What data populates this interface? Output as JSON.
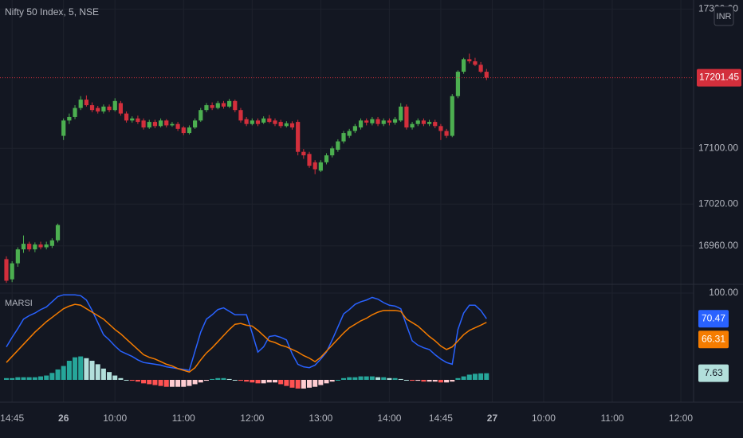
{
  "chart_data": {
    "type": "candlestick",
    "title": "Nifty 50 Index, 5, NSE",
    "currency": "INR",
    "categories": [
      null,
      "14:45",
      null,
      null,
      null,
      null,
      null,
      null,
      null,
      null,
      "26",
      null,
      null,
      null,
      null,
      null,
      null,
      null,
      null,
      "10:00",
      null,
      null,
      null,
      null,
      null,
      null,
      null,
      null,
      null,
      null,
      null,
      "11:00",
      null,
      null,
      null,
      null,
      null,
      null,
      null,
      null,
      null,
      null,
      null,
      "12:00",
      null,
      null,
      null,
      null,
      null,
      null,
      null,
      null,
      null,
      null,
      null,
      "13:00",
      null,
      null,
      null,
      null,
      null,
      null,
      null,
      null,
      null,
      null,
      null,
      "14:00",
      null,
      null,
      null,
      null,
      null,
      null,
      null,
      null,
      "14:45",
      null,
      null,
      null,
      null,
      null,
      null,
      null,
      null,
      "27",
      null,
      null,
      null,
      null,
      null,
      null,
      null,
      null,
      "10:00",
      null,
      null,
      null,
      null,
      null,
      null,
      null,
      null,
      null,
      null,
      null,
      "11:00",
      null,
      null,
      null,
      null,
      null,
      null,
      null,
      null,
      null,
      null,
      null,
      "12:00"
    ],
    "open": [
      16941,
      16912,
      16935,
      16955,
      16963,
      16955,
      16962,
      16958,
      16960,
      16968,
      17118,
      17140,
      17145,
      17158,
      17170,
      17162,
      17158,
      17153,
      17160,
      17155,
      17165,
      17150,
      17140,
      17143,
      17140,
      17130,
      17138,
      17132,
      17140,
      17133,
      17135,
      17130,
      17122,
      17130,
      17140,
      17155,
      17162,
      17158,
      17165,
      17160,
      17168,
      17155,
      17142,
      17135,
      17140,
      17137,
      17143,
      17140,
      17138,
      17132,
      17136,
      17138,
      17095,
      17092,
      17080,
      17068,
      17080,
      17090,
      17098,
      17110,
      17118,
      17125,
      17130,
      17140,
      17136,
      17142,
      17135,
      17140,
      17137,
      17140,
      17160,
      17130,
      17135,
      17140,
      17135,
      17138,
      17132,
      17125,
      17118,
      17175,
      17210,
      17228,
      17225,
      17220,
      17210,
      null,
      null,
      null,
      null,
      null,
      null,
      null,
      null,
      null,
      null,
      null,
      null,
      null,
      null,
      null,
      null,
      null,
      null,
      null,
      null,
      null,
      null,
      null,
      null,
      null,
      null,
      null,
      null,
      null,
      null,
      null,
      null,
      null,
      null
    ],
    "high": [
      16945,
      16938,
      16958,
      16975,
      16966,
      16965,
      16966,
      16966,
      16971,
      16992,
      17143,
      17150,
      17162,
      17175,
      17176,
      17166,
      17161,
      17163,
      17163,
      17172,
      17168,
      17153,
      17146,
      17147,
      17143,
      17141,
      17141,
      17143,
      17142,
      17138,
      17138,
      17132,
      17133,
      17143,
      17158,
      17165,
      17166,
      17168,
      17168,
      17171,
      17170,
      17158,
      17145,
      17143,
      17143,
      17146,
      17148,
      17143,
      17141,
      17139,
      17139,
      17141,
      17099,
      17095,
      17083,
      17083,
      17093,
      17103,
      17113,
      17125,
      17128,
      17135,
      17143,
      17143,
      17145,
      17145,
      17143,
      17143,
      17145,
      17165,
      17163,
      17138,
      17143,
      17143,
      17141,
      17141,
      17135,
      17128,
      17178,
      17212,
      17230,
      17236,
      17230,
      17224,
      17214,
      null,
      null,
      null,
      null,
      null,
      null,
      null,
      null,
      null,
      null,
      null,
      null,
      null,
      null,
      null,
      null,
      null,
      null,
      null,
      null,
      null,
      null,
      null,
      null,
      null,
      null,
      null,
      null,
      null,
      null,
      null,
      null,
      null,
      null
    ],
    "low": [
      16907,
      16908,
      16930,
      16950,
      16952,
      16951,
      16955,
      16955,
      16957,
      16965,
      17112,
      17135,
      17142,
      17155,
      17160,
      17152,
      17150,
      17150,
      17152,
      17153,
      17147,
      17137,
      17137,
      17135,
      17127,
      17128,
      17129,
      17130,
      17130,
      17131,
      17125,
      17119,
      17120,
      17128,
      17138,
      17152,
      17155,
      17156,
      17157,
      17158,
      17152,
      17137,
      17132,
      17133,
      17132,
      17135,
      17136,
      17132,
      17129,
      17130,
      17127,
      17090,
      17085,
      17072,
      17063,
      17066,
      17077,
      17087,
      17095,
      17107,
      17115,
      17122,
      17127,
      17133,
      17133,
      17132,
      17132,
      17133,
      17134,
      17138,
      17127,
      17127,
      17132,
      17132,
      17132,
      17129,
      17112,
      17115,
      17116,
      17172,
      17207,
      17222,
      17218,
      17208,
      17198,
      null,
      null,
      null,
      null,
      null,
      null,
      null,
      null,
      null,
      null,
      null,
      null,
      null,
      null,
      null,
      null,
      null,
      null,
      null,
      null,
      null,
      null,
      null,
      null,
      null,
      null,
      null,
      null,
      null,
      null,
      null,
      null,
      null,
      null
    ],
    "close": [
      16910,
      16935,
      16955,
      16963,
      16955,
      16962,
      16958,
      16962,
      16968,
      16990,
      17140,
      17145,
      17158,
      17170,
      17162,
      17155,
      17153,
      17160,
      17155,
      17168,
      17150,
      17140,
      17143,
      17138,
      17130,
      17138,
      17132,
      17140,
      17133,
      17135,
      17128,
      17122,
      17130,
      17140,
      17155,
      17162,
      17158,
      17165,
      17160,
      17168,
      17155,
      17140,
      17135,
      17140,
      17135,
      17143,
      17138,
      17135,
      17132,
      17136,
      17130,
      17095,
      17090,
      17075,
      17070,
      17080,
      17090,
      17100,
      17110,
      17122,
      17125,
      17132,
      17140,
      17137,
      17142,
      17135,
      17140,
      17137,
      17142,
      17160,
      17130,
      17135,
      17140,
      17135,
      17138,
      17132,
      17125,
      17118,
      17175,
      17210,
      17228,
      17225,
      17220,
      17210,
      17201.45,
      null,
      null,
      null,
      null,
      null,
      null,
      null,
      null,
      null,
      null,
      null,
      null,
      null,
      null,
      null,
      null,
      null,
      null,
      null,
      null,
      null,
      null,
      null,
      null,
      null,
      null,
      null,
      null,
      null,
      null,
      null,
      null,
      null,
      null
    ],
    "last_price": 17201.45,
    "colors": {
      "up": "#4caf50",
      "down": "#d32f3c",
      "last_price": "#d32f3c"
    },
    "ylim": [
      16906,
      17313
    ],
    "yticks": [
      {
        "value": 16960,
        "label": "16960.00"
      },
      {
        "value": 17020,
        "label": "17020.00"
      },
      {
        "value": 17100,
        "label": "17100.00"
      },
      {
        "value": 17300,
        "label": "17300.00"
      }
    ],
    "grid": true,
    "indicator": {
      "type": "line",
      "title": "MARSI",
      "ylim": [
        -25.7,
        109.2
      ],
      "yticks": [
        {
          "value": 100,
          "label": "100.00"
        }
      ],
      "series": [
        {
          "color": "#2962ff",
          "values": [
            38,
            49,
            59,
            70,
            74,
            77,
            81,
            84,
            90,
            96,
            98,
            98,
            98,
            97,
            92,
            80,
            66,
            52,
            46,
            39,
            33,
            30,
            27,
            23,
            20,
            19,
            18,
            17,
            15,
            14,
            13,
            12,
            11,
            33,
            55,
            70,
            75,
            81,
            83,
            79,
            75,
            75,
            75,
            54,
            32,
            38,
            50,
            51,
            49,
            46,
            30,
            18,
            15,
            14,
            17,
            24,
            32,
            46,
            61,
            76,
            81,
            87,
            90,
            92,
            95,
            93,
            89,
            86,
            85,
            82,
            63,
            45,
            40,
            37,
            35,
            29,
            24,
            20,
            18,
            58,
            77,
            86,
            86,
            80,
            70.47,
            null,
            null,
            null,
            null,
            null,
            null,
            null,
            null,
            null,
            null,
            null,
            null,
            null,
            null,
            null,
            null,
            null,
            null,
            null,
            null,
            null,
            null,
            null,
            null,
            null,
            null,
            null,
            null,
            null,
            null,
            null,
            null,
            null,
            null
          ]
        },
        {
          "color": "#f57c00",
          "values": [
            20,
            27,
            34,
            41,
            48,
            55,
            61,
            67,
            72,
            77,
            82,
            85,
            87,
            86,
            82,
            78,
            74,
            70,
            64,
            58,
            53,
            47,
            41,
            35,
            29,
            26,
            24,
            21,
            18,
            16,
            13,
            11,
            9,
            14,
            23,
            31,
            37,
            44,
            51,
            58,
            64,
            65,
            63,
            62,
            57,
            51,
            45,
            43,
            40,
            38,
            35,
            32,
            28,
            25,
            21,
            26,
            33,
            40,
            47,
            54,
            60,
            64,
            68,
            71,
            75,
            78,
            80,
            80,
            80,
            79,
            70,
            66,
            62,
            56,
            50,
            45,
            39,
            35,
            38,
            45,
            52,
            57,
            60,
            63,
            66.31,
            null,
            null,
            null,
            null,
            null,
            null,
            null,
            null,
            null,
            null,
            null,
            null,
            null,
            null,
            null,
            null,
            null,
            null,
            null,
            null,
            null,
            null,
            null,
            null,
            null,
            null,
            null,
            null,
            null,
            null,
            null,
            null,
            null,
            null
          ]
        }
      ],
      "histogram": {
        "values": [
          2,
          2,
          3,
          3,
          3,
          3,
          4,
          5,
          8,
          12,
          16,
          22,
          26,
          27,
          25,
          22,
          18,
          13,
          9,
          5,
          2,
          0,
          -1,
          -2,
          -4,
          -5,
          -6,
          -7,
          -8,
          -8,
          -8,
          -8,
          -7,
          -5,
          -3,
          -1,
          1,
          2,
          2,
          1,
          0,
          -1,
          -2,
          -3,
          -4,
          -4,
          -3,
          -3,
          -5,
          -7,
          -9,
          -10,
          -10,
          -9,
          -8,
          -6,
          -4,
          -2,
          0,
          2,
          3,
          3,
          4,
          4,
          4,
          3,
          3,
          2,
          2,
          1,
          0,
          -1,
          -1,
          -2,
          -2,
          -2,
          -3,
          -3,
          -2,
          2,
          4,
          6,
          7,
          7.5,
          7.63,
          null,
          null,
          null,
          null,
          null,
          null,
          null,
          null,
          null,
          null,
          null,
          null,
          null,
          null,
          null,
          null,
          null,
          null,
          null,
          null,
          null,
          null,
          null,
          null,
          null,
          null,
          null,
          null,
          null,
          null,
          null,
          null,
          null,
          null
        ],
        "colors": {
          "pos_up": "#26a69a",
          "pos_down": "#b2dfdb",
          "neg_down": "#ff5252",
          "neg_up": "#ffcdd2"
        }
      }
    }
  }
}
